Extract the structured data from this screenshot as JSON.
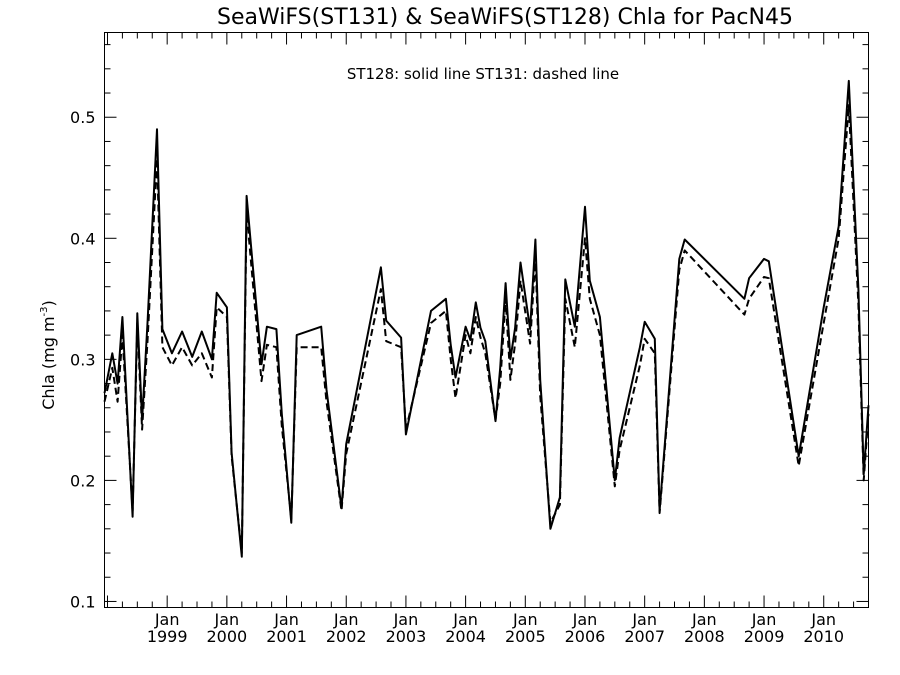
{
  "chart_data": {
    "type": "line",
    "title": "SeaWiFS(ST131) & SeaWiFS(ST128)  Chla for PacN45",
    "annotation": "ST128: solid line   ST131: dashed line",
    "ylabel": "Chla (mg m",
    "ylabel_superscript": "-3",
    "ylabel_close": ")",
    "ylim": [
      0.095,
      0.57
    ],
    "yticks": [
      {
        "value": 0.1,
        "label": "0.1"
      },
      {
        "value": 0.2,
        "label": "0.2"
      },
      {
        "value": 0.3,
        "label": "0.3"
      },
      {
        "value": 0.4,
        "label": "0.4"
      },
      {
        "value": 0.5,
        "label": "0.5"
      }
    ],
    "xlim": [
      1997.95,
      2010.75
    ],
    "xticks": [
      {
        "value": 1999.0,
        "month": "Jan",
        "year": "1999"
      },
      {
        "value": 2000.0,
        "month": "Jan",
        "year": "2000"
      },
      {
        "value": 2001.0,
        "month": "Jan",
        "year": "2001"
      },
      {
        "value": 2002.0,
        "month": "Jan",
        "year": "2002"
      },
      {
        "value": 2003.0,
        "month": "Jan",
        "year": "2003"
      },
      {
        "value": 2004.0,
        "month": "Jan",
        "year": "2004"
      },
      {
        "value": 2005.0,
        "month": "Jan",
        "year": "2005"
      },
      {
        "value": 2006.0,
        "month": "Jan",
        "year": "2006"
      },
      {
        "value": 2007.0,
        "month": "Jan",
        "year": "2007"
      },
      {
        "value": 2008.0,
        "month": "Jan",
        "year": "2008"
      },
      {
        "value": 2009.0,
        "month": "Jan",
        "year": "2009"
      },
      {
        "value": 2010.0,
        "month": "Jan",
        "year": "2010"
      }
    ],
    "grid": false,
    "x": [
      1997.95,
      1998.08,
      1998.17,
      1998.25,
      1998.42,
      1998.5,
      1998.58,
      1998.67,
      1998.83,
      1998.92,
      1999.08,
      1999.25,
      1999.42,
      1999.58,
      1999.75,
      1999.83,
      2000.0,
      2000.08,
      2000.25,
      2000.33,
      2000.58,
      2000.67,
      2000.83,
      2000.92,
      2001.08,
      2001.17,
      2001.58,
      2001.67,
      2001.92,
      2002.0,
      2002.58,
      2002.67,
      2002.92,
      2003.0,
      2003.42,
      2003.67,
      2003.75,
      2003.83,
      2004.0,
      2004.08,
      2004.17,
      2004.25,
      2004.33,
      2004.5,
      2004.58,
      2004.67,
      2004.75,
      2004.83,
      2004.92,
      2005.08,
      2005.17,
      2005.25,
      2005.42,
      2005.58,
      2005.67,
      2005.83,
      2006.0,
      2006.08,
      2006.25,
      2006.5,
      2006.58,
      2006.92,
      2007.0,
      2007.17,
      2007.25,
      2007.58,
      2007.67,
      2008.67,
      2008.75,
      2009.0,
      2009.08,
      2009.58,
      2010.0,
      2010.25,
      2010.42,
      2010.58,
      2010.67,
      2010.75
    ],
    "series": [
      {
        "values": [
          0.272,
          0.305,
          0.28,
          0.335,
          0.17,
          0.338,
          0.25,
          0.33,
          0.49,
          0.325,
          0.305,
          0.323,
          0.302,
          0.323,
          0.3,
          0.355,
          0.343,
          0.223,
          0.137,
          0.435,
          0.296,
          0.327,
          0.325,
          0.255,
          0.165,
          0.32,
          0.327,
          0.275,
          0.177,
          0.23,
          0.376,
          0.332,
          0.318,
          0.238,
          0.34,
          0.35,
          0.312,
          0.285,
          0.327,
          0.316,
          0.347,
          0.326,
          0.315,
          0.249,
          0.293,
          0.363,
          0.3,
          0.326,
          0.38,
          0.325,
          0.399,
          0.283,
          0.16,
          0.186,
          0.366,
          0.327,
          0.426,
          0.365,
          0.335,
          0.2,
          0.235,
          0.31,
          0.331,
          0.317,
          0.175,
          0.383,
          0.399,
          0.35,
          0.367,
          0.383,
          0.381,
          0.22,
          0.343,
          0.41,
          0.53,
          0.358,
          0.205,
          0.262
        ],
        "style": "solid",
        "color": "#000000"
      },
      {
        "values": [
          0.265,
          0.293,
          0.265,
          0.32,
          0.175,
          0.33,
          0.242,
          0.315,
          0.466,
          0.31,
          0.295,
          0.31,
          0.295,
          0.305,
          0.285,
          0.343,
          0.335,
          0.22,
          0.14,
          0.422,
          0.282,
          0.312,
          0.31,
          0.245,
          0.168,
          0.31,
          0.31,
          0.265,
          0.175,
          0.222,
          0.358,
          0.315,
          0.31,
          0.242,
          0.33,
          0.34,
          0.3,
          0.268,
          0.32,
          0.305,
          0.335,
          0.318,
          0.305,
          0.25,
          0.28,
          0.35,
          0.283,
          0.313,
          0.365,
          0.313,
          0.385,
          0.27,
          0.165,
          0.18,
          0.35,
          0.31,
          0.4,
          0.35,
          0.32,
          0.195,
          0.225,
          0.295,
          0.317,
          0.305,
          0.173,
          0.374,
          0.39,
          0.337,
          0.35,
          0.368,
          0.367,
          0.212,
          0.33,
          0.4,
          0.51,
          0.345,
          0.2,
          0.255
        ],
        "style": "dashed",
        "color": "#000000"
      }
    ]
  }
}
